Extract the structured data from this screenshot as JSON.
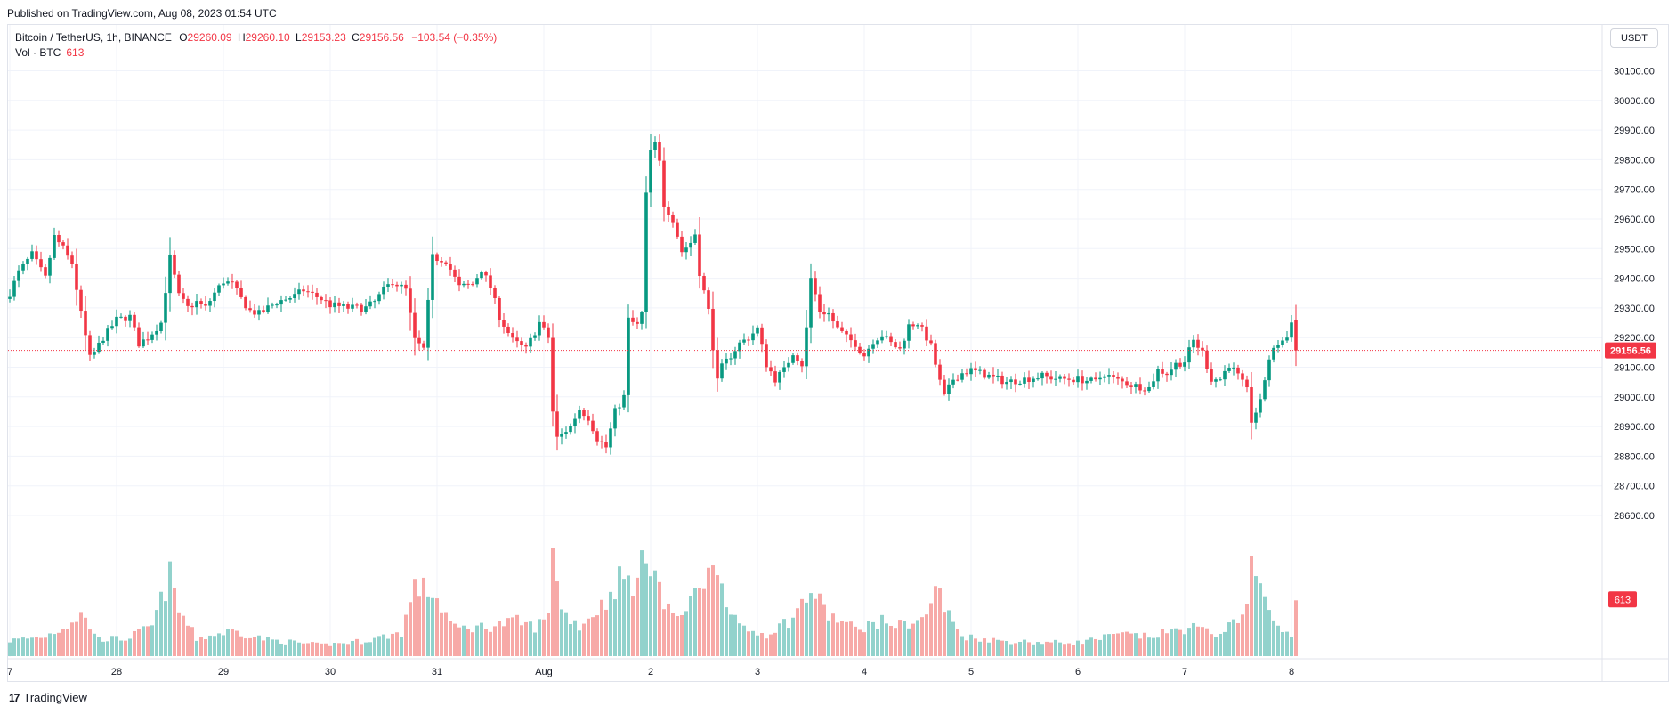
{
  "header": {
    "published": "Published on TradingView.com, Aug 08, 2023 01:54 UTC"
  },
  "legend": {
    "symbol": "Bitcoin / TetherUS, 1h, BINANCE",
    "o_label": "O",
    "o_value": "29260.09",
    "h_label": "H",
    "h_value": "29260.10",
    "l_label": "L",
    "l_value": "29153.23",
    "c_label": "C",
    "c_value": "29156.56",
    "change": "−103.54 (−0.35%)",
    "vol_label": "Vol · BTC",
    "vol_value": "613"
  },
  "currency_button": "USDT",
  "footer": {
    "brand": "TradingView",
    "logo_glyph": "17"
  },
  "colors": {
    "up": "#089981",
    "down": "#f23645",
    "up_volume": "#92d2cc",
    "down_volume": "#f7a9a7",
    "grid": "#f0f3fa",
    "axis_text": "#131722"
  },
  "chart_data": {
    "type": "candlestick",
    "title": "Bitcoin / TetherUS, 1h, BINANCE",
    "y_axis": {
      "range": [
        28560,
        30160
      ],
      "ticks": [
        "30100.00",
        "30000.00",
        "29900.00",
        "29800.00",
        "29700.00",
        "29600.00",
        "29500.00",
        "29400.00",
        "29300.00",
        "29200.00",
        "29100.00",
        "29000.00",
        "28900.00",
        "28800.00",
        "28700.00",
        "28600.00"
      ]
    },
    "x_axis": {
      "labels": [
        "7",
        "28",
        "29",
        "30",
        "31",
        "Aug",
        "2",
        "3",
        "4",
        "5",
        "6",
        "7",
        "8"
      ],
      "hours_from_start": [
        0,
        24,
        48,
        72,
        96,
        120,
        144,
        168,
        192,
        216,
        240,
        264,
        288
      ],
      "grid": true
    },
    "last_price": {
      "value": 29156.56,
      "label": "29156.56"
    },
    "last_volume": {
      "value": 613,
      "label": "613"
    },
    "close_anchors": [
      [
        0,
        29350
      ],
      [
        2,
        29420
      ],
      [
        5,
        29480
      ],
      [
        8,
        29400
      ],
      [
        10,
        29540
      ],
      [
        12,
        29500
      ],
      [
        14,
        29450
      ],
      [
        16,
        29280
      ],
      [
        18,
        29130
      ],
      [
        19,
        29150
      ],
      [
        21,
        29200
      ],
      [
        24,
        29260
      ],
      [
        27,
        29270
      ],
      [
        29,
        29180
      ],
      [
        31,
        29200
      ],
      [
        34,
        29250
      ],
      [
        36,
        29470
      ],
      [
        38,
        29340
      ],
      [
        40,
        29300
      ],
      [
        42,
        29320
      ],
      [
        44,
        29300
      ],
      [
        46,
        29350
      ],
      [
        48,
        29390
      ],
      [
        50,
        29380
      ],
      [
        52,
        29330
      ],
      [
        54,
        29290
      ],
      [
        56,
        29280
      ],
      [
        60,
        29320
      ],
      [
        64,
        29340
      ],
      [
        66,
        29360
      ],
      [
        70,
        29330
      ],
      [
        72,
        29310
      ],
      [
        76,
        29300
      ],
      [
        80,
        29300
      ],
      [
        82,
        29320
      ],
      [
        84,
        29360
      ],
      [
        86,
        29390
      ],
      [
        89,
        29360
      ],
      [
        91,
        29190
      ],
      [
        93,
        29160
      ],
      [
        95,
        29470
      ],
      [
        98,
        29460
      ],
      [
        101,
        29370
      ],
      [
        104,
        29380
      ],
      [
        106,
        29430
      ],
      [
        108,
        29370
      ],
      [
        110,
        29270
      ],
      [
        113,
        29190
      ],
      [
        116,
        29160
      ],
      [
        119,
        29250
      ],
      [
        121,
        29200
      ],
      [
        122,
        28950
      ],
      [
        123,
        28860
      ],
      [
        126,
        28900
      ],
      [
        128,
        28960
      ],
      [
        130,
        28930
      ],
      [
        132,
        28860
      ],
      [
        134,
        28830
      ],
      [
        136,
        28950
      ],
      [
        138,
        29000
      ],
      [
        139,
        29260
      ],
      [
        141,
        29240
      ],
      [
        142,
        29280
      ],
      [
        143,
        29680
      ],
      [
        144,
        29830
      ],
      [
        145,
        29850
      ],
      [
        146,
        29790
      ],
      [
        147,
        29650
      ],
      [
        149,
        29600
      ],
      [
        151,
        29490
      ],
      [
        153,
        29520
      ],
      [
        154,
        29550
      ],
      [
        155,
        29420
      ],
      [
        157,
        29290
      ],
      [
        159,
        29050
      ],
      [
        160,
        29100
      ],
      [
        162,
        29140
      ],
      [
        164,
        29180
      ],
      [
        166,
        29200
      ],
      [
        168,
        29230
      ],
      [
        170,
        29110
      ],
      [
        172,
        29060
      ],
      [
        174,
        29090
      ],
      [
        176,
        29150
      ],
      [
        178,
        29110
      ],
      [
        179,
        29230
      ],
      [
        180,
        29400
      ],
      [
        182,
        29290
      ],
      [
        184,
        29280
      ],
      [
        186,
        29230
      ],
      [
        188,
        29200
      ],
      [
        190,
        29180
      ],
      [
        192,
        29140
      ],
      [
        194,
        29190
      ],
      [
        196,
        29210
      ],
      [
        198,
        29180
      ],
      [
        200,
        29160
      ],
      [
        202,
        29240
      ],
      [
        204,
        29250
      ],
      [
        206,
        29200
      ],
      [
        207,
        29170
      ],
      [
        209,
        29050
      ],
      [
        210,
        29000
      ],
      [
        212,
        29060
      ],
      [
        214,
        29080
      ],
      [
        216,
        29090
      ],
      [
        220,
        29070
      ],
      [
        224,
        29050
      ],
      [
        228,
        29060
      ],
      [
        232,
        29070
      ],
      [
        236,
        29060
      ],
      [
        240,
        29060
      ],
      [
        244,
        29050
      ],
      [
        246,
        29080
      ],
      [
        248,
        29060
      ],
      [
        252,
        29040
      ],
      [
        256,
        29030
      ],
      [
        258,
        29090
      ],
      [
        260,
        29080
      ],
      [
        262,
        29110
      ],
      [
        264,
        29120
      ],
      [
        266,
        29190
      ],
      [
        268,
        29150
      ],
      [
        270,
        29060
      ],
      [
        272,
        29060
      ],
      [
        274,
        29110
      ],
      [
        276,
        29070
      ],
      [
        278,
        29020
      ],
      [
        279,
        28920
      ],
      [
        281,
        28980
      ],
      [
        282,
        29060
      ],
      [
        283,
        29130
      ],
      [
        285,
        29180
      ],
      [
        287,
        29200
      ],
      [
        288,
        29260
      ],
      [
        289,
        29157
      ]
    ],
    "volume_anchors": [
      [
        0,
        170
      ],
      [
        8,
        220
      ],
      [
        13,
        340
      ],
      [
        16,
        460
      ],
      [
        20,
        190
      ],
      [
        26,
        190
      ],
      [
        32,
        330
      ],
      [
        36,
        880
      ],
      [
        38,
        500
      ],
      [
        42,
        190
      ],
      [
        50,
        280
      ],
      [
        58,
        180
      ],
      [
        70,
        120
      ],
      [
        80,
        170
      ],
      [
        88,
        260
      ],
      [
        91,
        760
      ],
      [
        95,
        700
      ],
      [
        100,
        300
      ],
      [
        108,
        330
      ],
      [
        114,
        380
      ],
      [
        118,
        320
      ],
      [
        121,
        430
      ],
      [
        122,
        1320
      ],
      [
        124,
        500
      ],
      [
        128,
        330
      ],
      [
        134,
        600
      ],
      [
        137,
        850
      ],
      [
        141,
        800
      ],
      [
        143,
        1150
      ],
      [
        145,
        1020
      ],
      [
        147,
        530
      ],
      [
        152,
        420
      ],
      [
        154,
        820
      ],
      [
        158,
        900
      ],
      [
        159,
        1090
      ],
      [
        160,
        790
      ],
      [
        164,
        300
      ],
      [
        170,
        240
      ],
      [
        176,
        420
      ],
      [
        180,
        720
      ],
      [
        184,
        450
      ],
      [
        190,
        300
      ],
      [
        196,
        380
      ],
      [
        200,
        340
      ],
      [
        202,
        370
      ],
      [
        206,
        420
      ],
      [
        208,
        800
      ],
      [
        210,
        520
      ],
      [
        214,
        220
      ],
      [
        222,
        170
      ],
      [
        232,
        150
      ],
      [
        240,
        150
      ],
      [
        250,
        240
      ],
      [
        256,
        210
      ],
      [
        260,
        260
      ],
      [
        266,
        320
      ],
      [
        270,
        240
      ],
      [
        276,
        360
      ],
      [
        278,
        700
      ],
      [
        279,
        960
      ],
      [
        281,
        800
      ],
      [
        284,
        350
      ],
      [
        288,
        200
      ],
      [
        289,
        613
      ]
    ]
  }
}
